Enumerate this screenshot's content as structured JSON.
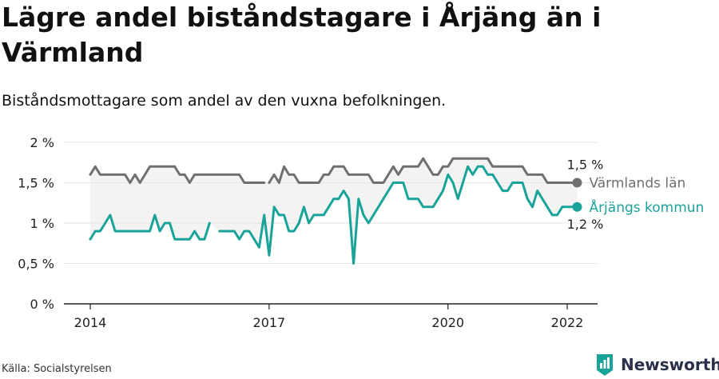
{
  "title": "Lägre andel biståndstagare i Årjäng än i Värmland",
  "subtitle": "Biståndsmottagare som andel av den vuxna befolkningen.",
  "source": "Källa: Socialstyrelsen",
  "brand": "Newsworthy",
  "colors": {
    "varmland": "#707070",
    "arjang": "#1aa399",
    "band": "#f3f3f3",
    "axis": "#222222"
  },
  "chart_data": {
    "type": "line",
    "title": "Lägre andel biståndstagare i Årjäng än i Värmland",
    "subtitle": "Biståndsmottagare som andel av den vuxna befolkningen.",
    "xlabel": "",
    "ylabel": "",
    "y_unit": "%",
    "ylim": [
      0,
      2
    ],
    "xlim": [
      2014,
      2022.5
    ],
    "yticks": [
      0,
      0.5,
      1,
      1.5,
      2
    ],
    "ytick_labels": [
      "0 %",
      "0,5 %",
      "1 %",
      "1,5 %",
      "2 %"
    ],
    "xticks": [
      2014,
      2017,
      2020,
      2022
    ],
    "xtick_labels": [
      "2014",
      "2017",
      "2020",
      "2022"
    ],
    "grid": "horizontal",
    "series": [
      {
        "name": "Värmlands län",
        "color": "#707070",
        "end_label": "1,5 %",
        "segments": [
          [
            [
              2014.0,
              1.6
            ],
            [
              2014.0833,
              1.7
            ],
            [
              2014.1667,
              1.6
            ],
            [
              2014.25,
              1.6
            ],
            [
              2014.3333,
              1.6
            ],
            [
              2014.4167,
              1.6
            ],
            [
              2014.5,
              1.6
            ],
            [
              2014.5833,
              1.6
            ],
            [
              2014.6667,
              1.5
            ],
            [
              2014.75,
              1.6
            ],
            [
              2014.8333,
              1.5
            ],
            [
              2014.9167,
              1.6
            ],
            [
              2015.0,
              1.7
            ],
            [
              2015.0833,
              1.7
            ],
            [
              2015.1667,
              1.7
            ],
            [
              2015.25,
              1.7
            ],
            [
              2015.3333,
              1.7
            ],
            [
              2015.4167,
              1.7
            ],
            [
              2015.5,
              1.6
            ],
            [
              2015.5833,
              1.6
            ],
            [
              2015.6667,
              1.5
            ],
            [
              2015.75,
              1.6
            ],
            [
              2015.8333,
              1.6
            ],
            [
              2015.9167,
              1.6
            ],
            [
              2016.0,
              1.6
            ],
            [
              2016.0833,
              1.6
            ],
            [
              2016.1667,
              1.6
            ],
            [
              2016.25,
              1.6
            ],
            [
              2016.3333,
              1.6
            ],
            [
              2016.4167,
              1.6
            ],
            [
              2016.5,
              1.6
            ],
            [
              2016.5833,
              1.5
            ],
            [
              2016.6667,
              1.5
            ],
            [
              2016.75,
              1.5
            ],
            [
              2016.8333,
              1.5
            ],
            [
              2016.9167,
              1.5
            ]
          ],
          [
            [
              2017.0,
              1.5
            ],
            [
              2017.0833,
              1.6
            ],
            [
              2017.1667,
              1.5
            ],
            [
              2017.25,
              1.7
            ],
            [
              2017.3333,
              1.6
            ],
            [
              2017.4167,
              1.6
            ],
            [
              2017.5,
              1.5
            ],
            [
              2017.5833,
              1.5
            ],
            [
              2017.6667,
              1.5
            ],
            [
              2017.75,
              1.5
            ],
            [
              2017.8333,
              1.5
            ],
            [
              2017.9167,
              1.6
            ],
            [
              2018.0,
              1.6
            ],
            [
              2018.0833,
              1.7
            ],
            [
              2018.1667,
              1.7
            ],
            [
              2018.25,
              1.7
            ],
            [
              2018.3333,
              1.6
            ],
            [
              2018.4167,
              1.6
            ],
            [
              2018.5,
              1.6
            ],
            [
              2018.5833,
              1.6
            ],
            [
              2018.6667,
              1.6
            ],
            [
              2018.75,
              1.5
            ],
            [
              2018.8333,
              1.5
            ],
            [
              2018.9167,
              1.5
            ],
            [
              2019.0,
              1.6
            ],
            [
              2019.0833,
              1.7
            ],
            [
              2019.1667,
              1.6
            ],
            [
              2019.25,
              1.7
            ],
            [
              2019.3333,
              1.7
            ],
            [
              2019.4167,
              1.7
            ],
            [
              2019.5,
              1.7
            ],
            [
              2019.5833,
              1.8
            ],
            [
              2019.6667,
              1.7
            ],
            [
              2019.75,
              1.6
            ],
            [
              2019.8333,
              1.6
            ],
            [
              2019.9167,
              1.7
            ],
            [
              2020.0,
              1.7
            ],
            [
              2020.0833,
              1.8
            ],
            [
              2020.1667,
              1.8
            ],
            [
              2020.25,
              1.8
            ],
            [
              2020.3333,
              1.8
            ],
            [
              2020.4167,
              1.8
            ],
            [
              2020.5,
              1.8
            ],
            [
              2020.5833,
              1.8
            ],
            [
              2020.6667,
              1.8
            ],
            [
              2020.75,
              1.7
            ],
            [
              2020.8333,
              1.7
            ],
            [
              2020.9167,
              1.7
            ],
            [
              2021.0,
              1.7
            ],
            [
              2021.0833,
              1.7
            ],
            [
              2021.1667,
              1.7
            ],
            [
              2021.25,
              1.7
            ],
            [
              2021.3333,
              1.6
            ],
            [
              2021.4167,
              1.6
            ],
            [
              2021.5,
              1.6
            ],
            [
              2021.5833,
              1.6
            ],
            [
              2021.6667,
              1.5
            ],
            [
              2021.75,
              1.5
            ],
            [
              2021.8333,
              1.5
            ],
            [
              2021.9167,
              1.5
            ],
            [
              2022.0,
              1.5
            ],
            [
              2022.0833,
              1.5
            ],
            [
              2022.1667,
              1.5
            ]
          ]
        ]
      },
      {
        "name": "Årjängs kommun",
        "color": "#1aa399",
        "end_label": "1,2 %",
        "segments": [
          [
            [
              2014.0,
              0.8
            ],
            [
              2014.0833,
              0.9
            ],
            [
              2014.1667,
              0.9
            ],
            [
              2014.25,
              1.0
            ],
            [
              2014.3333,
              1.1
            ],
            [
              2014.4167,
              0.9
            ],
            [
              2014.5,
              0.9
            ],
            [
              2014.5833,
              0.9
            ],
            [
              2014.6667,
              0.9
            ],
            [
              2014.75,
              0.9
            ],
            [
              2014.8333,
              0.9
            ],
            [
              2014.9167,
              0.9
            ],
            [
              2015.0,
              0.9
            ],
            [
              2015.0833,
              1.1
            ],
            [
              2015.1667,
              0.9
            ],
            [
              2015.25,
              1.0
            ],
            [
              2015.3333,
              1.0
            ],
            [
              2015.4167,
              0.8
            ],
            [
              2015.5,
              0.8
            ],
            [
              2015.5833,
              0.8
            ],
            [
              2015.6667,
              0.8
            ],
            [
              2015.75,
              0.9
            ],
            [
              2015.8333,
              0.8
            ],
            [
              2015.9167,
              0.8
            ],
            [
              2016.0,
              1.0
            ]
          ],
          [
            [
              2016.1667,
              0.9
            ],
            [
              2016.25,
              0.9
            ],
            [
              2016.3333,
              0.9
            ],
            [
              2016.4167,
              0.9
            ],
            [
              2016.5,
              0.8
            ],
            [
              2016.5833,
              0.9
            ],
            [
              2016.6667,
              0.9
            ],
            [
              2016.75,
              0.8
            ],
            [
              2016.8333,
              0.7
            ],
            [
              2016.9167,
              1.1
            ],
            [
              2017.0,
              0.6
            ],
            [
              2017.0833,
              1.2
            ],
            [
              2017.1667,
              1.1
            ],
            [
              2017.25,
              1.1
            ],
            [
              2017.3333,
              0.9
            ],
            [
              2017.4167,
              0.9
            ],
            [
              2017.5,
              1.0
            ],
            [
              2017.5833,
              1.2
            ],
            [
              2017.6667,
              1.0
            ],
            [
              2017.75,
              1.1
            ],
            [
              2017.8333,
              1.1
            ],
            [
              2017.9167,
              1.1
            ],
            [
              2018.0,
              1.2
            ],
            [
              2018.0833,
              1.3
            ],
            [
              2018.1667,
              1.3
            ],
            [
              2018.25,
              1.4
            ],
            [
              2018.3333,
              1.3
            ],
            [
              2018.4167,
              0.5
            ],
            [
              2018.5,
              1.3
            ],
            [
              2018.5833,
              1.1
            ],
            [
              2018.6667,
              1.0
            ],
            [
              2018.75,
              1.1
            ],
            [
              2018.8333,
              1.2
            ],
            [
              2018.9167,
              1.3
            ],
            [
              2019.0,
              1.4
            ],
            [
              2019.0833,
              1.5
            ],
            [
              2019.1667,
              1.5
            ],
            [
              2019.25,
              1.5
            ],
            [
              2019.3333,
              1.3
            ],
            [
              2019.4167,
              1.3
            ],
            [
              2019.5,
              1.3
            ],
            [
              2019.5833,
              1.2
            ],
            [
              2019.6667,
              1.2
            ],
            [
              2019.75,
              1.2
            ],
            [
              2019.8333,
              1.3
            ],
            [
              2019.9167,
              1.4
            ],
            [
              2020.0,
              1.6
            ],
            [
              2020.0833,
              1.5
            ],
            [
              2020.1667,
              1.3
            ],
            [
              2020.25,
              1.5
            ],
            [
              2020.3333,
              1.7
            ],
            [
              2020.4167,
              1.6
            ],
            [
              2020.5,
              1.7
            ],
            [
              2020.5833,
              1.7
            ],
            [
              2020.6667,
              1.6
            ],
            [
              2020.75,
              1.6
            ],
            [
              2020.8333,
              1.5
            ],
            [
              2020.9167,
              1.4
            ],
            [
              2021.0,
              1.4
            ],
            [
              2021.0833,
              1.5
            ],
            [
              2021.1667,
              1.5
            ],
            [
              2021.25,
              1.5
            ],
            [
              2021.3333,
              1.3
            ],
            [
              2021.4167,
              1.2
            ],
            [
              2021.5,
              1.4
            ],
            [
              2021.5833,
              1.3
            ],
            [
              2021.6667,
              1.2
            ],
            [
              2021.75,
              1.1
            ],
            [
              2021.8333,
              1.1
            ],
            [
              2021.9167,
              1.2
            ],
            [
              2022.0,
              1.2
            ],
            [
              2022.0833,
              1.2
            ],
            [
              2022.1667,
              1.2
            ]
          ]
        ]
      }
    ]
  }
}
